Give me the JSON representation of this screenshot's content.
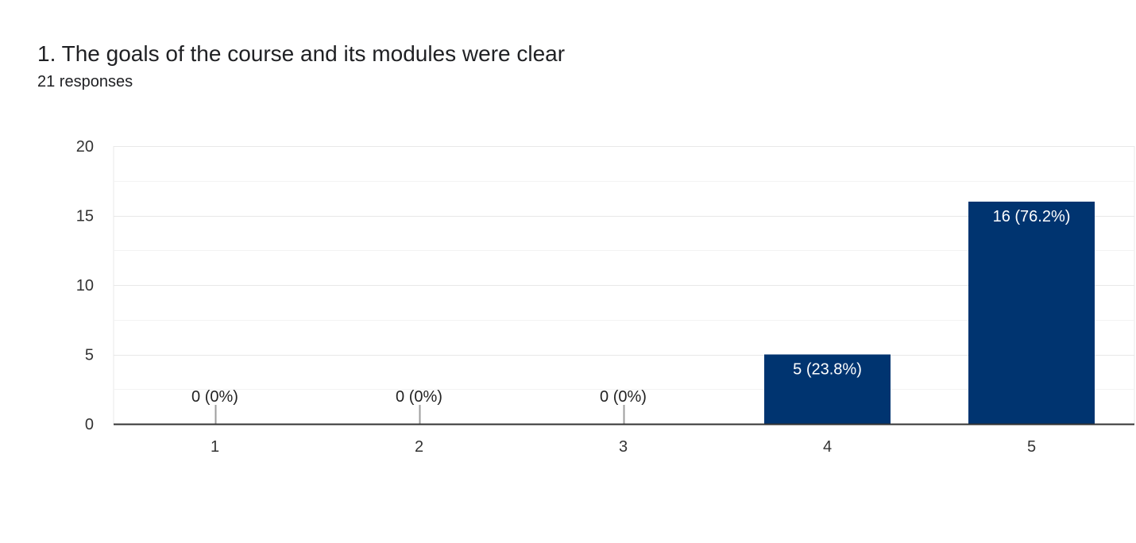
{
  "header": {
    "title": "1. The goals of the course and its modules were clear",
    "responses": "21 responses"
  },
  "colors": {
    "bar": "#003470",
    "grid": "#e8e8e8",
    "minor_grid": "#f3f3f3",
    "axis": "#333333",
    "label_outside": "#222222",
    "label_inside": "#ffffff"
  },
  "chart_data": {
    "type": "bar",
    "title": "",
    "xlabel": "",
    "ylabel": "",
    "categories": [
      "1",
      "2",
      "3",
      "4",
      "5"
    ],
    "values": [
      0,
      0,
      0,
      5,
      16
    ],
    "data_labels": [
      "0 (0%)",
      "0 (0%)",
      "0 (0%)",
      "5 (23.8%)",
      "16 (76.2%)"
    ],
    "ylim": [
      0,
      20
    ],
    "yticks": [
      0,
      5,
      10,
      15,
      20
    ],
    "grid": true,
    "legend": "none"
  }
}
